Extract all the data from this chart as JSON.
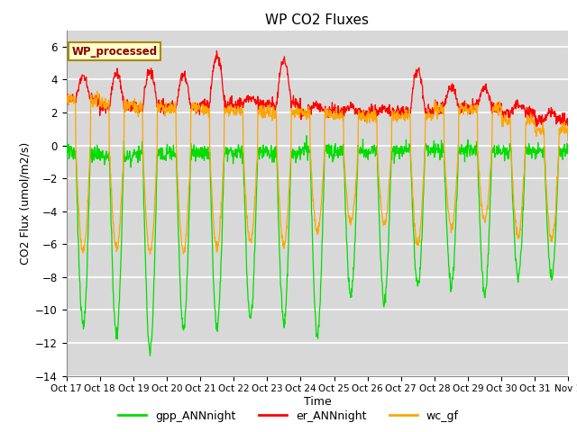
{
  "title": "WP CO2 Fluxes",
  "xlabel": "Time",
  "ylabel": "CO2 Flux (umol/m2/s)",
  "ylim": [
    -14,
    7
  ],
  "yticks": [
    -14,
    -12,
    -10,
    -8,
    -6,
    -4,
    -2,
    0,
    2,
    4,
    6
  ],
  "background_color": "#d8d8d8",
  "figure_color": "#ffffff",
  "grid_color": "#ffffff",
  "colors": {
    "gpp": "#00dd00",
    "er": "#ff0000",
    "wc": "#ffa500"
  },
  "legend_labels": [
    "gpp_ANNnight",
    "er_ANNnight",
    "wc_gf"
  ],
  "annotation_text": "WP_processed",
  "annotation_color": "#880000",
  "annotation_bg": "#ffffcc",
  "annotation_border": "#aa8800",
  "xtick_labels": [
    "Oct 17",
    "Oct 18",
    "Oct 19",
    "Oct 20",
    "Oct 21",
    "Oct 22",
    "Oct 23",
    "Oct 24",
    "Oct 25",
    "Oct 26",
    "Oct 27",
    "Oct 28",
    "Oct 29",
    "Oct 30",
    "Oct 31",
    "Nov 1"
  ],
  "n_days": 15,
  "points_per_day": 96,
  "gpp_depths": [
    -11,
    -11.5,
    -12.5,
    -11.2,
    -11.0,
    -10.5,
    -10.8,
    -11.5,
    -9.0,
    -9.5,
    -8.5,
    -8.5,
    -9.0,
    -8.0,
    -8.0
  ],
  "gpp_night": [
    -0.5,
    -0.7,
    -0.5,
    -0.4,
    -0.5,
    -0.4,
    -0.5,
    -0.3,
    -0.3,
    -0.3,
    -0.2,
    -0.3,
    -0.3,
    -0.4,
    -0.4
  ],
  "er_peaks": [
    4.2,
    4.4,
    4.5,
    4.3,
    5.5,
    2.9,
    5.2,
    2.5,
    2.3,
    2.3,
    4.6,
    3.5,
    3.5,
    2.5,
    2.0
  ],
  "er_nights": [
    2.8,
    2.3,
    2.3,
    2.3,
    2.5,
    2.5,
    2.5,
    2.0,
    2.0,
    2.0,
    2.0,
    2.3,
    2.3,
    2.0,
    1.5
  ],
  "wc_depths": [
    -6.5,
    -6.3,
    -6.5,
    -6.5,
    -6.2,
    -5.8,
    -6.0,
    -5.2,
    -4.7,
    -4.8,
    -6.0,
    -5.0,
    -4.5,
    -5.5,
    -5.8
  ],
  "wc_nights": [
    2.8,
    2.5,
    2.3,
    2.3,
    2.1,
    2.0,
    2.0,
    1.9,
    1.8,
    1.8,
    1.8,
    2.2,
    2.2,
    1.5,
    1.0
  ],
  "day_start": 0.28,
  "day_end": 0.72
}
